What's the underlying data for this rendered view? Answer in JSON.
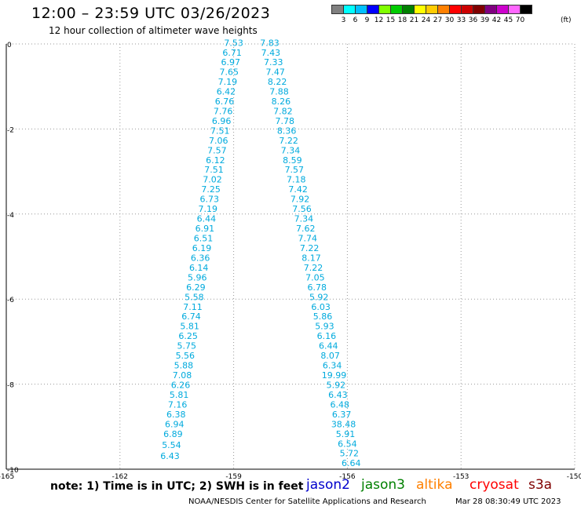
{
  "header": {
    "title": "12:00 – 23:59 UTC 03/26/2023",
    "subtitle": "12 hour collection of altimeter wave heights"
  },
  "colorbar": {
    "labels": [
      "3",
      "6",
      "9",
      "12",
      "15",
      "18",
      "21",
      "24",
      "27",
      "30",
      "33",
      "36",
      "39",
      "42",
      "45",
      "70"
    ],
    "unit": "(ft)",
    "colors": [
      "#808080",
      "#00ffff",
      "#00bfff",
      "#0000ff",
      "#80ff00",
      "#00cc00",
      "#008000",
      "#ffff00",
      "#ffcc00",
      "#ff8000",
      "#ff0000",
      "#cc0000",
      "#800000",
      "#800080",
      "#cc00cc",
      "#ff66ff",
      "#000000"
    ]
  },
  "footer": {
    "note": "note:  1) Time is in UTC;  2) SWH is in feet",
    "satellites": [
      {
        "name": "jason2",
        "color": "#0000cc"
      },
      {
        "name": "jason3",
        "color": "#008000"
      },
      {
        "name": "altika",
        "color": "#ff8000"
      },
      {
        "name": "cryosat",
        "color": "#ff0000"
      },
      {
        "name": "s3a",
        "color": "#800000"
      }
    ],
    "credit": "NOAA/NESDIS Center for Satellite Applications and Research",
    "stamp": "Mar 28 08:30:49 UTC 2023"
  },
  "chart_data": {
    "type": "scatter",
    "xlim": [
      -165,
      -150
    ],
    "ylim": [
      -10,
      0
    ],
    "xticks": [
      -165,
      -162,
      -159,
      -156,
      -153,
      -150
    ],
    "yticks": [
      0,
      -2,
      -4,
      -6,
      -8,
      -10
    ],
    "grid": true,
    "series": [
      {
        "color": "#00aadd",
        "points": [
          {
            "x": -159.0,
            "y": -0.05,
            "v": "7.53"
          },
          {
            "x": -159.04,
            "y": -0.28,
            "v": "6.71"
          },
          {
            "x": -159.08,
            "y": -0.5,
            "v": "6.97"
          },
          {
            "x": -159.12,
            "y": -0.73,
            "v": "7.65"
          },
          {
            "x": -159.16,
            "y": -0.96,
            "v": "7.19"
          },
          {
            "x": -159.2,
            "y": -1.19,
            "v": "6.42"
          },
          {
            "x": -159.24,
            "y": -1.42,
            "v": "6.76"
          },
          {
            "x": -159.28,
            "y": -1.65,
            "v": "7.76"
          },
          {
            "x": -159.32,
            "y": -1.88,
            "v": "6.96"
          },
          {
            "x": -159.36,
            "y": -2.11,
            "v": "7.51"
          },
          {
            "x": -159.4,
            "y": -2.34,
            "v": "7.06"
          },
          {
            "x": -159.44,
            "y": -2.57,
            "v": "7.57"
          },
          {
            "x": -159.48,
            "y": -2.8,
            "v": "6.12"
          },
          {
            "x": -159.52,
            "y": -3.03,
            "v": "7.51"
          },
          {
            "x": -159.56,
            "y": -3.26,
            "v": "7.02"
          },
          {
            "x": -159.6,
            "y": -3.49,
            "v": "7.25"
          },
          {
            "x": -159.64,
            "y": -3.72,
            "v": "6.73"
          },
          {
            "x": -159.68,
            "y": -3.95,
            "v": "7.19"
          },
          {
            "x": -159.72,
            "y": -4.18,
            "v": "6.44"
          },
          {
            "x": -159.76,
            "y": -4.41,
            "v": "6.91"
          },
          {
            "x": -159.8,
            "y": -4.64,
            "v": "6.51"
          },
          {
            "x": -159.84,
            "y": -4.87,
            "v": "6.19"
          },
          {
            "x": -159.88,
            "y": -5.1,
            "v": "6.36"
          },
          {
            "x": -159.92,
            "y": -5.33,
            "v": "6.14"
          },
          {
            "x": -159.96,
            "y": -5.56,
            "v": "5.96"
          },
          {
            "x": -160.0,
            "y": -5.79,
            "v": "6.29"
          },
          {
            "x": -160.04,
            "y": -6.02,
            "v": "5.58"
          },
          {
            "x": -160.08,
            "y": -6.25,
            "v": "7.11"
          },
          {
            "x": -160.12,
            "y": -6.48,
            "v": "6.74"
          },
          {
            "x": -160.16,
            "y": -6.71,
            "v": "5.81"
          },
          {
            "x": -160.2,
            "y": -6.94,
            "v": "6.25"
          },
          {
            "x": -160.24,
            "y": -7.17,
            "v": "5.75"
          },
          {
            "x": -160.28,
            "y": -7.4,
            "v": "5.56"
          },
          {
            "x": -160.32,
            "y": -7.63,
            "v": "5.88"
          },
          {
            "x": -160.36,
            "y": -7.86,
            "v": "7.08"
          },
          {
            "x": -160.4,
            "y": -8.09,
            "v": "6.26"
          },
          {
            "x": -160.44,
            "y": -8.32,
            "v": "5.81"
          },
          {
            "x": -160.48,
            "y": -8.55,
            "v": "7.16"
          },
          {
            "x": -160.52,
            "y": -8.78,
            "v": "6.38"
          },
          {
            "x": -160.56,
            "y": -9.01,
            "v": "6.94"
          },
          {
            "x": -160.6,
            "y": -9.24,
            "v": "6.89"
          },
          {
            "x": -160.64,
            "y": -9.5,
            "v": "5.54"
          },
          {
            "x": -160.68,
            "y": -9.76,
            "v": "6.43"
          }
        ]
      },
      {
        "color": "#00aadd",
        "points": [
          {
            "x": -158.05,
            "y": -0.05,
            "v": "7.83"
          },
          {
            "x": -158.02,
            "y": -0.28,
            "v": "7.43"
          },
          {
            "x": -157.95,
            "y": -0.5,
            "v": "7.33"
          },
          {
            "x": -157.9,
            "y": -0.73,
            "v": "7.47"
          },
          {
            "x": -157.85,
            "y": -0.96,
            "v": "8.22"
          },
          {
            "x": -157.8,
            "y": -1.19,
            "v": "7.88"
          },
          {
            "x": -157.75,
            "y": -1.42,
            "v": "8.26"
          },
          {
            "x": -157.7,
            "y": -1.65,
            "v": "7.82"
          },
          {
            "x": -157.65,
            "y": -1.88,
            "v": "7.78"
          },
          {
            "x": -157.6,
            "y": -2.11,
            "v": "8.36"
          },
          {
            "x": -157.55,
            "y": -2.34,
            "v": "7.22"
          },
          {
            "x": -157.5,
            "y": -2.57,
            "v": "7.34"
          },
          {
            "x": -157.45,
            "y": -2.8,
            "v": "8.59"
          },
          {
            "x": -157.4,
            "y": -3.03,
            "v": "7.57"
          },
          {
            "x": -157.35,
            "y": -3.26,
            "v": "7.18"
          },
          {
            "x": -157.3,
            "y": -3.49,
            "v": "7.42"
          },
          {
            "x": -157.25,
            "y": -3.72,
            "v": "7.92"
          },
          {
            "x": -157.2,
            "y": -3.95,
            "v": "7.56"
          },
          {
            "x": -157.15,
            "y": -4.18,
            "v": "7.34"
          },
          {
            "x": -157.1,
            "y": -4.41,
            "v": "7.62"
          },
          {
            "x": -157.05,
            "y": -4.64,
            "v": "7.74"
          },
          {
            "x": -157.0,
            "y": -4.87,
            "v": "7.22"
          },
          {
            "x": -156.95,
            "y": -5.1,
            "v": "8.17"
          },
          {
            "x": -156.9,
            "y": -5.33,
            "v": "7.22"
          },
          {
            "x": -156.85,
            "y": -5.56,
            "v": "7.05"
          },
          {
            "x": -156.8,
            "y": -5.79,
            "v": "6.78"
          },
          {
            "x": -156.75,
            "y": -6.02,
            "v": "5.92"
          },
          {
            "x": -156.7,
            "y": -6.25,
            "v": "6.03"
          },
          {
            "x": -156.65,
            "y": -6.48,
            "v": "5.86"
          },
          {
            "x": -156.6,
            "y": -6.71,
            "v": "5.93"
          },
          {
            "x": -156.55,
            "y": -6.94,
            "v": "6.16"
          },
          {
            "x": -156.5,
            "y": -7.17,
            "v": "6.44"
          },
          {
            "x": -156.45,
            "y": -7.4,
            "v": "8.07"
          },
          {
            "x": -156.4,
            "y": -7.63,
            "v": "6.34"
          },
          {
            "x": -156.35,
            "y": -7.86,
            "v": "19.99"
          },
          {
            "x": -156.3,
            "y": -8.09,
            "v": "5.92"
          },
          {
            "x": -156.25,
            "y": -8.32,
            "v": "6.43"
          },
          {
            "x": -156.2,
            "y": -8.55,
            "v": "6.48"
          },
          {
            "x": -156.15,
            "y": -8.78,
            "v": "6.37"
          },
          {
            "x": -156.1,
            "y": -9.01,
            "v": "38.48"
          },
          {
            "x": -156.05,
            "y": -9.24,
            "v": "5.91"
          },
          {
            "x": -156.0,
            "y": -9.47,
            "v": "6.54"
          },
          {
            "x": -155.95,
            "y": -9.7,
            "v": "5.72"
          },
          {
            "x": -155.9,
            "y": -9.93,
            "v": "6.64"
          }
        ]
      }
    ]
  }
}
